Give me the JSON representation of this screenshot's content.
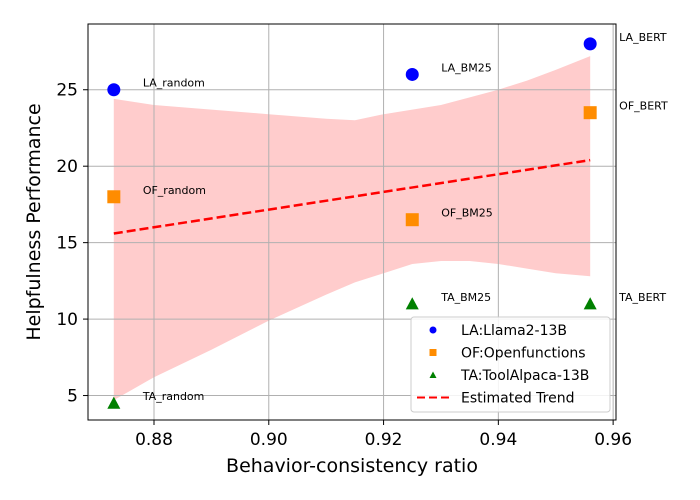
{
  "chart_data": {
    "type": "scatter",
    "title": "",
    "xlabel": "Behavior-consistency ratio",
    "ylabel": "Helpfulness Performance",
    "xlim": [
      0.8685,
      0.9605
    ],
    "ylim": [
      3.4,
      29.3
    ],
    "xticks": [
      0.88,
      0.9,
      0.92,
      0.94,
      0.96
    ],
    "xtick_labels": [
      "0.88",
      "0.90",
      "0.92",
      "0.94",
      "0.96"
    ],
    "yticks": [
      5,
      10,
      15,
      20,
      25
    ],
    "ytick_labels": [
      "5",
      "10",
      "15",
      "20",
      "25"
    ],
    "grid": true,
    "legend_position": "bottom-right",
    "series": [
      {
        "name": "LA:Llama2-13B",
        "marker": "circle",
        "color": "#0000ff",
        "points": [
          {
            "x": 0.873,
            "y": 25.0,
            "label": "LA_random"
          },
          {
            "x": 0.925,
            "y": 26.0,
            "label": "LA_BM25"
          },
          {
            "x": 0.956,
            "y": 28.0,
            "label": "LA_BERT"
          }
        ]
      },
      {
        "name": "OF:Openfunctions",
        "marker": "square",
        "color": "#ff8c00",
        "points": [
          {
            "x": 0.873,
            "y": 18.0,
            "label": "OF_random"
          },
          {
            "x": 0.925,
            "y": 16.5,
            "label": "OF_BM25"
          },
          {
            "x": 0.956,
            "y": 23.5,
            "label": "OF_BERT"
          }
        ]
      },
      {
        "name": "TA:ToolAlpaca-13B",
        "marker": "triangle",
        "color": "#008000",
        "points": [
          {
            "x": 0.873,
            "y": 4.5,
            "label": "TA_random"
          },
          {
            "x": 0.925,
            "y": 11.0,
            "label": "TA_BM25"
          },
          {
            "x": 0.956,
            "y": 11.0,
            "label": "TA_BERT"
          }
        ]
      }
    ],
    "trend": {
      "name": "Estimated Trend",
      "color": "#ff0000",
      "x": [
        0.873,
        0.956
      ],
      "y": [
        15.6,
        20.4
      ]
    },
    "confidence_band": {
      "color": "#ffcccc",
      "x": [
        0.873,
        0.88,
        0.89,
        0.9,
        0.91,
        0.915,
        0.92,
        0.925,
        0.93,
        0.935,
        0.94,
        0.945,
        0.95,
        0.956
      ],
      "upper": [
        24.4,
        24.0,
        23.7,
        23.4,
        23.1,
        23.0,
        23.4,
        23.7,
        24.0,
        24.5,
        25.0,
        25.6,
        26.3,
        27.2
      ],
      "lower": [
        4.7,
        6.2,
        8.0,
        9.9,
        11.6,
        12.4,
        13.0,
        13.6,
        13.8,
        13.8,
        13.6,
        13.3,
        13.0,
        12.8
      ]
    }
  }
}
